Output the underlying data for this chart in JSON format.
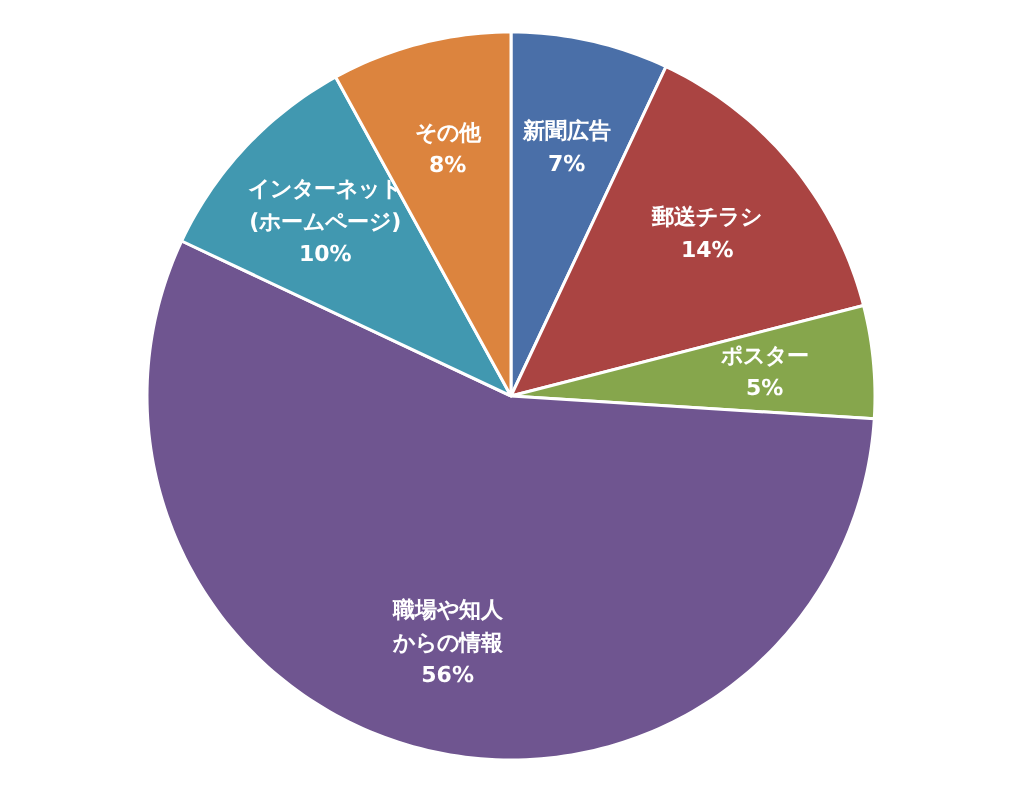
{
  "chart_data": {
    "type": "pie",
    "categories": [
      "新聞広告",
      "郵送チラシ",
      "ポスター",
      "職場や知人からの情報",
      "インターネット(ホームページ)",
      "その他"
    ],
    "values": [
      7,
      14,
      5,
      56,
      10,
      8
    ],
    "value_labels": [
      "7%",
      "14%",
      "5%",
      "56%",
      "10%",
      "8%"
    ],
    "colors": [
      "#4a6fa8",
      "#aa4442",
      "#86a64c",
      "#6f5590",
      "#4198b0",
      "#dc843e"
    ],
    "legend": false
  }
}
